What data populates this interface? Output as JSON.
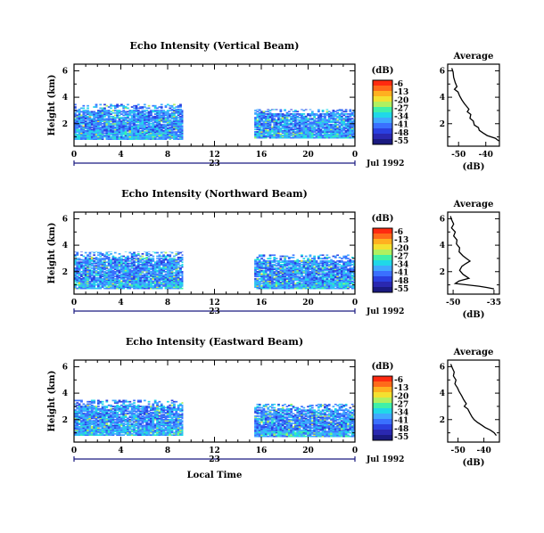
{
  "chart_data": [
    {
      "type": "heatmap",
      "title": "Echo Intensity (Vertical Beam)",
      "ylabel": "Height (km)",
      "xlabel": "",
      "x_ticks": [
        "0",
        "4",
        "8",
        "12",
        "16",
        "20",
        "0"
      ],
      "y_ticks": [
        "2",
        "4",
        "6"
      ],
      "xlim": [
        0,
        24
      ],
      "ylim": [
        0.3,
        6.5
      ],
      "date_label": "23",
      "month_label": "Jul 1992",
      "colorbar": {
        "title": "(dB)",
        "ticks": [
          "-6",
          "-13",
          "-20",
          "-27",
          "-34",
          "-41",
          "-48",
          "-55"
        ]
      },
      "echo_regions": [
        {
          "t_start": 0.0,
          "t_end": 9.3,
          "h_bottom": 0.8,
          "h_top": 3.5
        },
        {
          "t_start": 15.4,
          "t_end": 24.0,
          "h_bottom": 0.9,
          "h_top": 3.1
        }
      ],
      "average_profile": {
        "title": "Average",
        "xlabel": "(dB)",
        "x_ticks": [
          "-50",
          "-40"
        ],
        "y_ticks": [
          "2",
          "4",
          "6"
        ],
        "xlim": [
          -54,
          -35
        ],
        "x": [
          -52.5,
          -52,
          -51.8,
          -51.2,
          -50.6,
          -51.5,
          -50.2,
          -49.6,
          -48.8,
          -47.8,
          -47,
          -46.2,
          -46.8,
          -45.5,
          -45.8,
          -44.6,
          -44.2,
          -42.7,
          -42.4,
          -41,
          -39.5,
          -36.5,
          -35.2
        ],
        "height": [
          6.2,
          5.9,
          5.5,
          5.1,
          4.8,
          4.6,
          4.4,
          4.1,
          3.8,
          3.5,
          3.3,
          3.1,
          2.9,
          2.7,
          2.4,
          2.2,
          1.9,
          1.7,
          1.5,
          1.3,
          1.1,
          0.9,
          0.7
        ]
      }
    },
    {
      "type": "heatmap",
      "title": "Echo Intensity (Northward Beam)",
      "ylabel": "Height (km)",
      "xlabel": "",
      "x_ticks": [
        "0",
        "4",
        "8",
        "12",
        "16",
        "20",
        "0"
      ],
      "y_ticks": [
        "2",
        "4",
        "6"
      ],
      "xlim": [
        0,
        24
      ],
      "ylim": [
        0.3,
        6.5
      ],
      "date_label": "23",
      "month_label": "Jul 1992",
      "colorbar": {
        "title": "(dB)",
        "ticks": [
          "-6",
          "-13",
          "-20",
          "-27",
          "-34",
          "-41",
          "-48",
          "-55"
        ]
      },
      "echo_regions": [
        {
          "t_start": 0.0,
          "t_end": 9.3,
          "h_bottom": 0.7,
          "h_top": 3.5
        },
        {
          "t_start": 15.4,
          "t_end": 24.0,
          "h_bottom": 0.7,
          "h_top": 3.3
        }
      ],
      "average_profile": {
        "title": "Average",
        "xlabel": "(dB)",
        "x_ticks": [
          "-50",
          "-35"
        ],
        "y_ticks": [
          "2",
          "4",
          "6"
        ],
        "xlim": [
          -52,
          -33
        ],
        "x": [
          -51,
          -50.5,
          -49.8,
          -50.6,
          -49.2,
          -49.8,
          -48.6,
          -48.8,
          -47.6,
          -47.8,
          -46.4,
          -45.2,
          -43.8,
          -45.4,
          -46.8,
          -47.6,
          -46.4,
          -44.2,
          -47.8,
          -49.2,
          -40.5,
          -37.5,
          -35
        ],
        "height": [
          6.2,
          5.9,
          5.6,
          5.3,
          5.0,
          4.7,
          4.4,
          4.1,
          3.8,
          3.5,
          3.2,
          3.0,
          2.8,
          2.6,
          2.4,
          2.1,
          1.8,
          1.5,
          1.3,
          1.1,
          0.9,
          0.8,
          0.7
        ]
      }
    },
    {
      "type": "heatmap",
      "title": "Echo Intensity (Eastward Beam)",
      "ylabel": "Height (km)",
      "xlabel": "Local Time",
      "x_ticks": [
        "0",
        "4",
        "8",
        "12",
        "16",
        "20",
        "0"
      ],
      "y_ticks": [
        "2",
        "4",
        "6"
      ],
      "xlim": [
        0,
        24
      ],
      "ylim": [
        0.3,
        6.5
      ],
      "date_label": "23",
      "month_label": "Jul 1992",
      "colorbar": {
        "title": "(dB)",
        "ticks": [
          "-6",
          "-13",
          "-20",
          "-27",
          "-34",
          "-41",
          "-48",
          "-55"
        ]
      },
      "echo_regions": [
        {
          "t_start": 0.0,
          "t_end": 9.3,
          "h_bottom": 0.8,
          "h_top": 3.5
        },
        {
          "t_start": 15.4,
          "t_end": 24.0,
          "h_bottom": 0.7,
          "h_top": 3.2
        }
      ],
      "average_profile": {
        "title": "Average",
        "xlabel": "(dB)",
        "x_ticks": [
          "-50",
          "-40"
        ],
        "y_ticks": [
          "2",
          "4",
          "6"
        ],
        "xlim": [
          -54,
          -34
        ],
        "x": [
          -52.8,
          -52.2,
          -51.5,
          -51.8,
          -50.8,
          -51.2,
          -50.2,
          -49.5,
          -48.6,
          -47.8,
          -46.8,
          -47.6,
          -46.2,
          -45.4,
          -44.6,
          -43.8,
          -42.6,
          -41,
          -39.5,
          -37.5,
          -36,
          -35.2
        ],
        "height": [
          6.2,
          5.9,
          5.6,
          5.3,
          5.0,
          4.7,
          4.4,
          4.1,
          3.8,
          3.5,
          3.2,
          3.0,
          2.8,
          2.5,
          2.2,
          2.0,
          1.8,
          1.6,
          1.4,
          1.2,
          1.0,
          0.8
        ]
      }
    }
  ]
}
